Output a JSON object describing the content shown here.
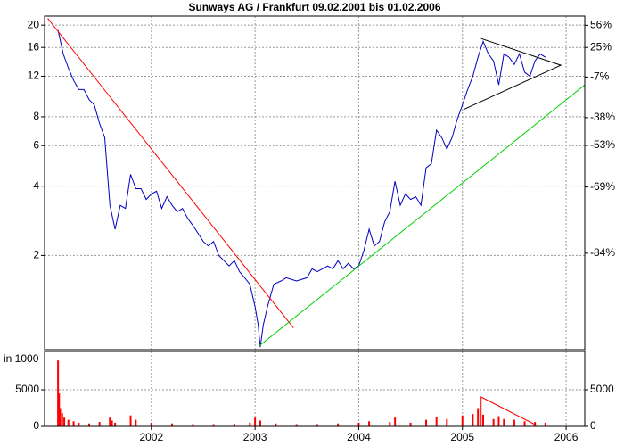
{
  "chart_data": [
    {
      "type": "line",
      "title": "Sunways AG / Frankfurt 09.02.2001 bis 01.02.2006",
      "xlim": [
        2000.97,
        2006.18
      ],
      "ylim": [
        0.78,
        21.9
      ],
      "log_scale": true,
      "yticks": [
        2,
        4,
        6,
        8,
        12,
        16,
        20
      ],
      "y2lim": [
        -93.9,
        71.1
      ],
      "y2ticks": [
        {
          "value": -84,
          "label": "-84%"
        },
        {
          "value": -69,
          "label": "-69%"
        },
        {
          "value": -53,
          "label": "-53%"
        },
        {
          "value": -38,
          "label": "-38%"
        },
        {
          "value": -7,
          "label": "-7%"
        },
        {
          "value": 25,
          "label": "25%"
        },
        {
          "value": 56,
          "label": "56%"
        }
      ],
      "grid": true,
      "series": [
        {
          "color": "#0000c0",
          "x": [
            2001.1,
            2001.15,
            2001.2,
            2001.25,
            2001.3,
            2001.35,
            2001.4,
            2001.45,
            2001.5,
            2001.55,
            2001.6,
            2001.65,
            2001.7,
            2001.75,
            2001.8,
            2001.85,
            2001.9,
            2001.95,
            2002.0,
            2002.05,
            2002.1,
            2002.15,
            2002.2,
            2002.25,
            2002.3,
            2002.35,
            2002.4,
            2002.45,
            2002.5,
            2002.55,
            2002.6,
            2002.65,
            2002.7,
            2002.75,
            2002.8,
            2002.85,
            2002.9,
            2002.95,
            2003.0,
            2003.03,
            2003.05,
            2003.08,
            2003.12,
            2003.18,
            2003.25,
            2003.3,
            2003.4,
            2003.5,
            2003.55,
            2003.6,
            2003.7,
            2003.75,
            2003.8,
            2003.85,
            2003.9,
            2003.95,
            2004.0,
            2004.05,
            2004.1,
            2004.15,
            2004.2,
            2004.25,
            2004.3,
            2004.35,
            2004.4,
            2004.45,
            2004.5,
            2004.55,
            2004.6,
            2004.65,
            2004.7,
            2004.75,
            2004.8,
            2004.85,
            2004.9,
            2004.95,
            2005.0,
            2005.05,
            2005.1,
            2005.15,
            2005.2,
            2005.25,
            2005.3,
            2005.35,
            2005.4,
            2005.45,
            2005.5,
            2005.55,
            2005.6,
            2005.65,
            2005.7,
            2005.75,
            2005.8
          ],
          "values": [
            19,
            15,
            13,
            11.5,
            10.5,
            10.5,
            9.5,
            9,
            7.5,
            6.5,
            3.3,
            2.6,
            3.3,
            3.2,
            4.5,
            3.9,
            3.9,
            3.5,
            3.7,
            3.8,
            3.2,
            3.6,
            3.3,
            3.1,
            3.2,
            2.9,
            2.7,
            2.5,
            2.3,
            2.2,
            2.3,
            2.0,
            1.9,
            1.8,
            1.9,
            1.7,
            1.6,
            1.5,
            1.2,
            1.0,
            0.8,
            1.0,
            1.2,
            1.5,
            1.55,
            1.6,
            1.55,
            1.6,
            1.75,
            1.7,
            1.8,
            1.75,
            1.9,
            1.75,
            1.85,
            1.75,
            1.8,
            2.1,
            2.6,
            2.2,
            2.3,
            2.8,
            3.1,
            4.2,
            3.3,
            3.7,
            3.5,
            3.6,
            3.3,
            4.8,
            5.0,
            7.0,
            6.5,
            5.8,
            6.5,
            7.8,
            9.0,
            10.5,
            12.0,
            14.5,
            17.0,
            15.0,
            14.0,
            11.0,
            15.0,
            14.5,
            13.5,
            15.0,
            12.5,
            12.0,
            14.0,
            15.0,
            14.5
          ]
        },
        {
          "color": "#ff0000",
          "x": [
            2001.0,
            2003.37
          ],
          "values": [
            21.4,
            0.97
          ]
        },
        {
          "color": "#00d000",
          "x": [
            2003.04,
            2006.18
          ],
          "values": [
            0.81,
            11.0
          ]
        },
        {
          "color": "#000000",
          "x": [
            2005.18,
            2005.95,
            2005.01
          ],
          "values": [
            17.5,
            13.4,
            8.6
          ]
        }
      ]
    },
    {
      "type": "bar",
      "ylabel": "in 1000",
      "xlim": [
        2000.97,
        2006.18
      ],
      "xticks": [
        2002,
        2003,
        2004,
        2005,
        2006
      ],
      "ylim": [
        0,
        10240
      ],
      "yticks": [
        0,
        5000
      ],
      "grid": true,
      "series": [
        {
          "color": "#ff0000",
          "x": [
            2001.1,
            2001.11,
            2001.12,
            2001.14,
            2001.16,
            2001.2,
            2001.25,
            2001.3,
            2001.4,
            2001.5,
            2001.6,
            2001.62,
            2001.65,
            2001.8,
            2001.85,
            2002.0,
            2002.2,
            2002.4,
            2002.6,
            2002.8,
            2002.95,
            2003.0,
            2003.05,
            2003.2,
            2003.4,
            2003.6,
            2003.8,
            2004.0,
            2004.1,
            2004.3,
            2004.35,
            2004.5,
            2004.65,
            2004.75,
            2004.85,
            2005.0,
            2005.1,
            2005.15,
            2005.2,
            2005.3,
            2005.35,
            2005.4,
            2005.5,
            2005.6,
            2005.7,
            2005.8
          ],
          "values": [
            9000,
            4500,
            2500,
            1800,
            1200,
            900,
            700,
            500,
            400,
            600,
            1200,
            800,
            500,
            1500,
            900,
            500,
            400,
            300,
            300,
            350,
            500,
            1200,
            800,
            400,
            300,
            300,
            400,
            500,
            700,
            600,
            1200,
            500,
            900,
            1300,
            1000,
            1500,
            1700,
            2500,
            1600,
            1000,
            1400,
            1000,
            900,
            700,
            600,
            500
          ]
        },
        {
          "color": "#ff0000",
          "line": true,
          "x": [
            2005.18,
            2005.18,
            2005.7
          ],
          "values": [
            0,
            4024,
            244
          ]
        }
      ]
    }
  ]
}
